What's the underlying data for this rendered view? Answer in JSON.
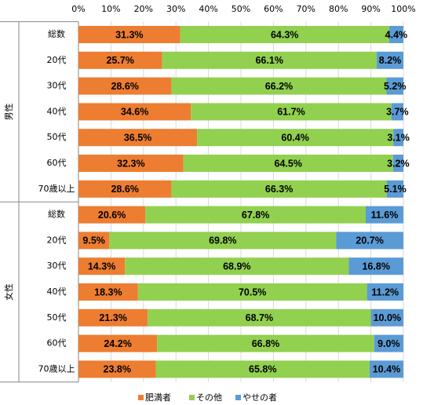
{
  "chart_data": {
    "type": "stacked-bar-horizontal-100",
    "groups": [
      {
        "name": "男性",
        "categories": [
          "総数",
          "20代",
          "30代",
          "40代",
          "50代",
          "60代",
          "70歳以上"
        ]
      },
      {
        "name": "女性",
        "categories": [
          "総数",
          "20代",
          "30代",
          "40代",
          "50代",
          "60代",
          "70歳以上"
        ]
      }
    ],
    "series": [
      {
        "name": "肥満者",
        "color": "#ed7d31",
        "values": [
          31.3,
          25.7,
          28.6,
          34.6,
          36.5,
          32.3,
          28.6,
          20.6,
          9.5,
          14.3,
          18.3,
          21.3,
          24.2,
          23.8
        ],
        "value_labels": [
          "31.3%",
          "25.7%",
          "28.6%",
          "34.6%",
          "36.5%",
          "32.3%",
          "28.6%",
          "20.6%",
          "9.5%",
          "14.3%",
          "18.3%",
          "21.3%",
          "24.2%",
          "23.8%"
        ]
      },
      {
        "name": "その他",
        "color": "#92d050",
        "values": [
          64.3,
          66.1,
          66.2,
          61.7,
          60.4,
          64.5,
          66.3,
          67.8,
          69.8,
          68.9,
          70.5,
          68.7,
          66.8,
          65.8
        ],
        "value_labels": [
          "64.3%",
          "66.1%",
          "66.2%",
          "61.7%",
          "60.4%",
          "64.5%",
          "66.3%",
          "67.8%",
          "69.8%",
          "68.9%",
          "70.5%",
          "68.7%",
          "66.8%",
          "65.8%"
        ]
      },
      {
        "name": "やせの者",
        "color": "#5b9bd5",
        "values": [
          4.4,
          8.2,
          5.2,
          3.7,
          3.1,
          3.2,
          5.1,
          11.6,
          20.7,
          16.8,
          11.2,
          10.0,
          9.0,
          10.4
        ],
        "value_labels": [
          "4.4%",
          "8.2%",
          "5.2%",
          "3.7%",
          "3.1%",
          "3.2%",
          "5.1%",
          "11.6%",
          "20.7%",
          "16.8%",
          "11.2%",
          "10.0%",
          "9.0%",
          "10.4%"
        ]
      }
    ],
    "xlim": [
      0,
      100
    ],
    "xticks": [
      {
        "value": 0,
        "label": "0%"
      },
      {
        "value": 10,
        "label": "10%"
      },
      {
        "value": 20,
        "label": "20%"
      },
      {
        "value": 30,
        "label": "30%"
      },
      {
        "value": 40,
        "label": "40%"
      },
      {
        "value": 50,
        "label": "50%"
      },
      {
        "value": 60,
        "label": "60%"
      },
      {
        "value": 70,
        "label": "70%"
      },
      {
        "value": 80,
        "label": "80%"
      },
      {
        "value": 90,
        "label": "90%"
      },
      {
        "value": 100,
        "label": "100%"
      }
    ],
    "grid": true,
    "legend": "bottom"
  }
}
